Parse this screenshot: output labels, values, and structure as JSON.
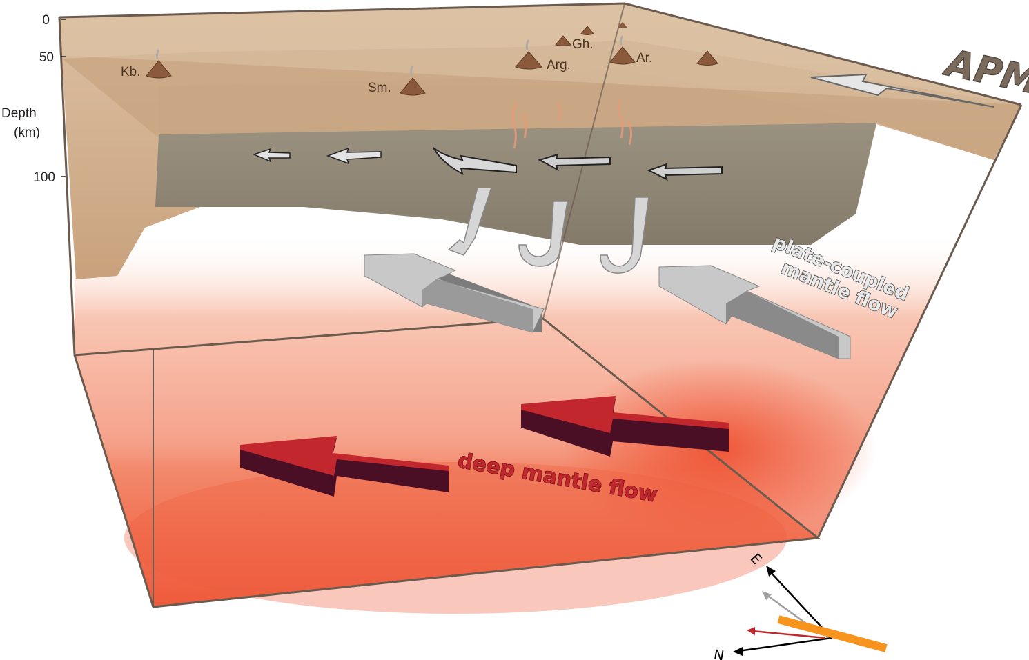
{
  "depth_axis": {
    "title_line1": "Depth",
    "title_line2": "(km)",
    "ticks": [
      "0",
      "50",
      "100"
    ]
  },
  "volcanoes": [
    "Kb.",
    "Sm.",
    "Gh.",
    "Arg.",
    "Ar."
  ],
  "labels": {
    "apm": "APM",
    "plate_coupled_line1": "plate-coupled",
    "plate_coupled_line2": "mantle flow",
    "deep_mantle_flow": "deep mantle flow"
  },
  "compass": {
    "east": "E",
    "north": "N"
  },
  "colors": {
    "lithosphere": "#c9a684",
    "asthenosphere": "#8a8174",
    "deep_mantle": "#ef5a3c",
    "deep_arrow": "#c1272d",
    "coupled_arrow": "#c8c8c8",
    "fast_axis_bar": "#f7941d"
  }
}
